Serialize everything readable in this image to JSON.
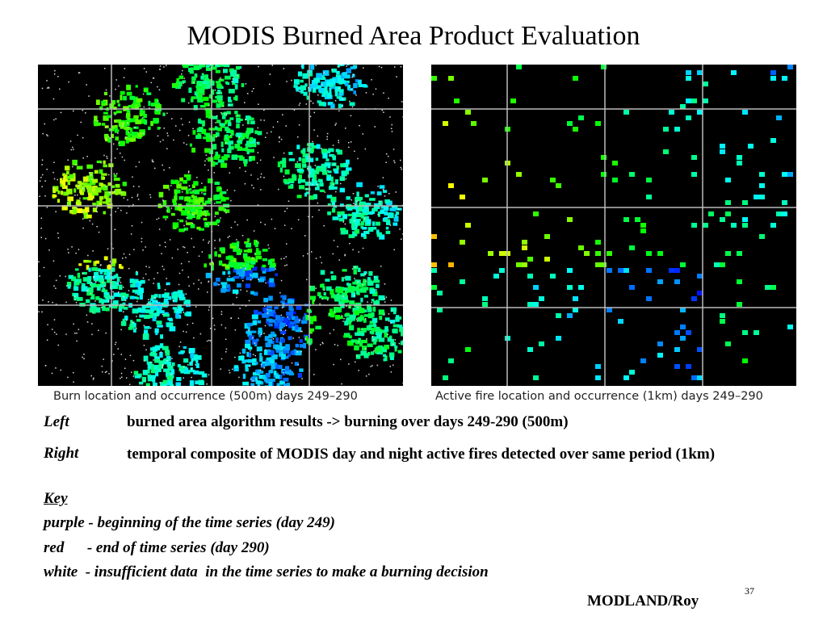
{
  "title": "MODIS Burned Area Product Evaluation",
  "left_image": {
    "caption": "Burn location and occurrence (500m) days 249–290"
  },
  "right_image": {
    "caption": "Active fire location and occurrence (1km) days 249–290"
  },
  "notes": [
    {
      "label": "Left",
      "text": "burned area algorithm results -> burning over days 249-290 (500m)"
    },
    {
      "label": "Right",
      "text": "temporal composite of MODIS day and night active fires detected over same period (1km)"
    }
  ],
  "key": {
    "heading": "Key",
    "items": [
      "purple - beginning of the time series (day 249)",
      "red      - end of time series (day 290)",
      "white  - insufficient data  in the time series to make a burning decision"
    ]
  },
  "page_number": "37",
  "footer": "MODLAND/Roy"
}
